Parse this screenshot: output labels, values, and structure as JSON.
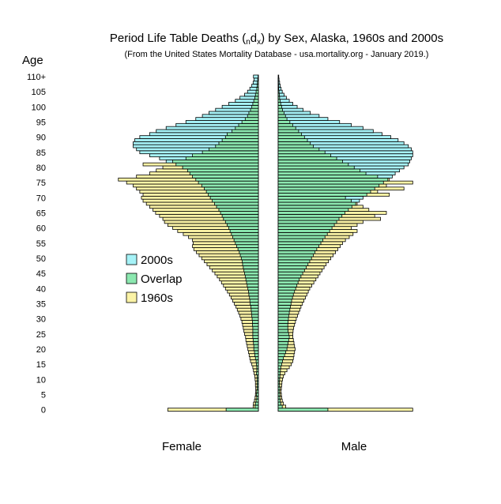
{
  "chart_data": {
    "type": "bar",
    "title_main": "Period Life Table Deaths (",
    "title_sub1": "n",
    "title_mid": "d",
    "title_sub2": "x",
    "title_tail": ") by Sex, Alaska, 1960s and 2000s",
    "subtitle": "(From the United States Mortality Database - usa.mortality.org - January 2019.)",
    "ylabel": "Age",
    "panels": [
      {
        "label": "Female"
      },
      {
        "label": "Male"
      }
    ],
    "legend": {
      "placement": "left-middle",
      "entries": [
        {
          "label": "2000s",
          "color": "#a6f2f7"
        },
        {
          "label": "Overlap",
          "color": "#8ce8b0"
        },
        {
          "label": "1960s",
          "color": "#fbf3a6"
        }
      ]
    },
    "age_ticks": [
      "0",
      "5",
      "10",
      "15",
      "20",
      "25",
      "30",
      "35",
      "40",
      "45",
      "50",
      "55",
      "60",
      "65",
      "70",
      "75",
      "80",
      "85",
      "90",
      "95",
      "100",
      "105",
      "110+"
    ],
    "age_groups": [
      "0",
      "1",
      "2",
      "3",
      "4",
      "5",
      "6",
      "7",
      "8",
      "9",
      "10",
      "11",
      "12",
      "13",
      "14",
      "15",
      "16",
      "17",
      "18",
      "19",
      "20",
      "21",
      "22",
      "23",
      "24",
      "25",
      "26",
      "27",
      "28",
      "29",
      "30",
      "31",
      "32",
      "33",
      "34",
      "35",
      "36",
      "37",
      "38",
      "39",
      "40",
      "41",
      "42",
      "43",
      "44",
      "45",
      "46",
      "47",
      "48",
      "49",
      "50",
      "51",
      "52",
      "53",
      "54",
      "55",
      "56",
      "57",
      "58",
      "59",
      "60",
      "61",
      "62",
      "63",
      "64",
      "65",
      "66",
      "67",
      "67",
      "69",
      "70",
      "71",
      "72",
      "73",
      "74",
      "75",
      "76",
      "77",
      "78",
      "79",
      "80",
      "81",
      "82",
      "83",
      "84",
      "85",
      "86",
      "87",
      "88",
      "89",
      "90",
      "91",
      "92",
      "93",
      "94",
      "95",
      "96",
      "97",
      "98",
      "99",
      "100",
      "101",
      "102",
      "103",
      "104",
      "105",
      "106",
      "107",
      "108",
      "109",
      "110+"
    ],
    "female_2000s": [
      980,
      100,
      90,
      70,
      50,
      60,
      50,
      40,
      40,
      40,
      40,
      40,
      60,
      50,
      50,
      60,
      70,
      90,
      110,
      120,
      140,
      140,
      150,
      160,
      170,
      170,
      170,
      170,
      180,
      180,
      190,
      200,
      210,
      220,
      230,
      250,
      260,
      270,
      290,
      300,
      320,
      340,
      360,
      380,
      400,
      420,
      440,
      460,
      480,
      490,
      520,
      550,
      580,
      620,
      660,
      700,
      740,
      780,
      820,
      860,
      900,
      950,
      1000,
      1060,
      1100,
      1150,
      1200,
      1270,
      1330,
      1400,
      1460,
      1520,
      1580,
      1640,
      1720,
      1820,
      1900,
      2000,
      2080,
      2150,
      2300,
      2500,
      2800,
      3000,
      3300,
      3600,
      3700,
      3800,
      3800,
      3750,
      3600,
      3300,
      3100,
      2800,
      2500,
      2200,
      1900,
      1700,
      1500,
      1300,
      1100,
      900,
      700,
      560,
      420,
      330,
      260,
      200,
      160,
      130,
      150
    ],
    "female_1960s": [
      2750,
      160,
      150,
      120,
      100,
      90,
      80,
      80,
      90,
      90,
      100,
      110,
      130,
      150,
      170,
      200,
      240,
      260,
      280,
      300,
      320,
      340,
      360,
      380,
      390,
      420,
      440,
      460,
      480,
      500,
      530,
      560,
      600,
      640,
      680,
      730,
      780,
      830,
      880,
      940,
      1000,
      1060,
      1120,
      1180,
      1250,
      1320,
      1400,
      1480,
      1560,
      1640,
      1720,
      1800,
      1880,
      1960,
      2000,
      1980,
      2000,
      2120,
      2280,
      2450,
      2600,
      2750,
      2850,
      2900,
      3000,
      3120,
      3200,
      3300,
      3400,
      3500,
      3550,
      3500,
      3600,
      3700,
      3800,
      4000,
      4250,
      3700,
      3300,
      3100,
      2900,
      3500,
      2600,
      2200,
      2000,
      1700,
      1500,
      1300,
      1200,
      1100,
      1000,
      950,
      800,
      700,
      600,
      500,
      400,
      330,
      290,
      240,
      200,
      170,
      140,
      110,
      90,
      70,
      50,
      40,
      30,
      20,
      10
    ],
    "male_2000s": [
      1700,
      140,
      90,
      70,
      60,
      60,
      50,
      60,
      50,
      40,
      50,
      60,
      70,
      80,
      90,
      120,
      150,
      180,
      220,
      260,
      300,
      320,
      340,
      360,
      380,
      360,
      340,
      330,
      330,
      340,
      350,
      360,
      380,
      400,
      420,
      440,
      460,
      490,
      520,
      560,
      600,
      640,
      680,
      720,
      780,
      840,
      900,
      960,
      1020,
      1080,
      1140,
      1200,
      1260,
      1320,
      1390,
      1460,
      1530,
      1600,
      1680,
      1760,
      1840,
      1920,
      2000,
      2080,
      2180,
      2280,
      2400,
      2520,
      2650,
      2780,
      2900,
      3030,
      3160,
      3300,
      3450,
      3600,
      3750,
      3900,
      4000,
      4150,
      4300,
      4450,
      4500,
      4550,
      4600,
      4600,
      4550,
      4450,
      4300,
      4100,
      3850,
      3550,
      3250,
      2900,
      2500,
      2100,
      1700,
      1400,
      1100,
      850,
      650,
      500,
      380,
      280,
      200,
      140,
      100,
      70,
      50,
      30,
      20
    ],
    "male_1960s": [
      4600,
      260,
      180,
      140,
      120,
      110,
      100,
      110,
      120,
      130,
      150,
      180,
      230,
      300,
      380,
      450,
      500,
      520,
      540,
      560,
      580,
      560,
      540,
      520,
      500,
      500,
      510,
      530,
      560,
      590,
      620,
      660,
      700,
      740,
      780,
      830,
      880,
      930,
      980,
      1030,
      1080,
      1150,
      1220,
      1290,
      1360,
      1430,
      1500,
      1570,
      1640,
      1720,
      1800,
      1880,
      1960,
      2040,
      2120,
      2200,
      2300,
      2430,
      2560,
      2700,
      2500,
      2700,
      2900,
      3500,
      3300,
      3700,
      3100,
      2900,
      2700,
      2500,
      2300,
      3800,
      3400,
      4300,
      3700,
      4600,
      3800,
      3400,
      3000,
      2800,
      2600,
      2400,
      2200,
      2000,
      1800,
      1600,
      1400,
      1200,
      1100,
      1000,
      900,
      800,
      700,
      600,
      500,
      400,
      300,
      250,
      200,
      150,
      120,
      90,
      70,
      50,
      40,
      30,
      20,
      15,
      10,
      5,
      0
    ]
  }
}
